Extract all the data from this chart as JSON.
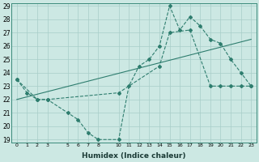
{
  "xlabel": "Humidex (Indice chaleur)",
  "x_ticks": [
    0,
    1,
    2,
    3,
    5,
    6,
    7,
    8,
    10,
    11,
    12,
    13,
    14,
    15,
    16,
    17,
    18,
    19,
    20,
    21,
    22,
    23
  ],
  "ylim": [
    19,
    29
  ],
  "xlim": [
    -0.5,
    23.5
  ],
  "yticks": [
    19,
    20,
    21,
    22,
    23,
    24,
    25,
    26,
    27,
    28,
    29
  ],
  "line_color": "#2e7d6e",
  "bg_color": "#cce8e3",
  "grid_color": "#a8cdc8",
  "series1": {
    "x": [
      0,
      1,
      2,
      3,
      5,
      6,
      7,
      8,
      10,
      11,
      12,
      13,
      14,
      15,
      16,
      17,
      18,
      19,
      20,
      21,
      22,
      23
    ],
    "y": [
      23.5,
      22.5,
      22.0,
      22.0,
      21.0,
      20.5,
      19.5,
      19.0,
      19.0,
      23.0,
      24.5,
      25.0,
      26.0,
      29.0,
      27.2,
      28.2,
      27.5,
      26.5,
      26.2,
      25.0,
      24.0,
      23.0
    ]
  },
  "series2": {
    "x": [
      0,
      2,
      3,
      10,
      14,
      15,
      17,
      19,
      20,
      21,
      22,
      23
    ],
    "y": [
      23.5,
      22.0,
      22.0,
      22.5,
      24.5,
      27.0,
      27.2,
      23.0,
      23.0,
      23.0,
      23.0,
      23.0
    ]
  },
  "trend": {
    "x": [
      0,
      23
    ],
    "y": [
      22.0,
      26.5
    ]
  }
}
